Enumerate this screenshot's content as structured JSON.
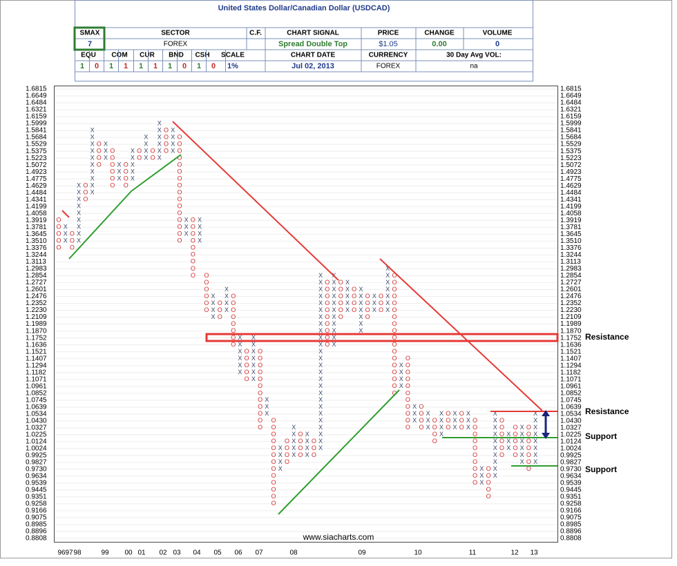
{
  "header": {
    "title": "United States Dollar/Canadian Dollar (USDCAD)",
    "smax_label": "SMAX",
    "smax": "7",
    "sector_label": "SECTOR",
    "sector": "FOREX",
    "cf_label": "C.F.",
    "signal_label": "CHART SIGNAL",
    "signal": "Spread Double Top",
    "price_label": "PRICE",
    "price": "$1.05",
    "change_label": "CHANGE",
    "change": "0.00",
    "volume_label": "VOLUME",
    "volume": "0",
    "asset_labels": [
      "EQU",
      "COM",
      "CUR",
      "BND",
      "CSH",
      "SCALE"
    ],
    "asset_values": [
      "1",
      "0",
      "1",
      "1",
      "1",
      "1",
      "1",
      "0",
      "1",
      "0",
      "1%"
    ],
    "date_label": "CHART DATE",
    "date": "Jul 02, 2013",
    "currency_label": "CURRENCY",
    "currency": "FOREX",
    "avg_vol_label": "30 Day Avg VOL:",
    "avg_vol": "na"
  },
  "chart_data": {
    "type": "point-and-figure",
    "log_scale": true,
    "grid": true,
    "ylim": [
      0.8808,
      1.6815
    ],
    "yticks": [
      1.6815,
      1.6649,
      1.6484,
      1.6321,
      1.6159,
      1.5999,
      1.5841,
      1.5684,
      1.5529,
      1.5375,
      1.5223,
      1.5072,
      1.4923,
      1.4775,
      1.4629,
      1.4484,
      1.4341,
      1.4199,
      1.4058,
      1.3919,
      1.3781,
      1.3645,
      {
        "value": 1.351,
        "label": "1.3510"
      },
      1.3376,
      1.3244,
      1.3113,
      1.2983,
      1.2854,
      1.2727,
      1.2601,
      1.2476,
      1.2352,
      {
        "value": 1.223,
        "label": "1.2230"
      },
      1.2109,
      1.1989,
      {
        "value": 1.187,
        "label": "1.1870"
      },
      1.1752,
      1.1636,
      1.1521,
      1.1407,
      1.1294,
      1.1182,
      1.1071,
      1.0961,
      1.0852,
      1.0745,
      1.0639,
      1.0534,
      {
        "value": 1.043,
        "label": "1.0430"
      },
      1.0327,
      1.0225,
      1.0124,
      1.0024,
      0.9925,
      0.9827,
      {
        "value": 0.973,
        "label": "0.9730"
      },
      0.9634,
      0.9539,
      0.9445,
      0.9351,
      0.9258,
      0.9166,
      0.9075,
      0.8985,
      0.8896,
      0.8808
    ],
    "categories": [
      "96",
      "97",
      "98",
      "99",
      "00",
      "01",
      "02",
      "03",
      "04",
      "05",
      "06",
      "07",
      "08",
      "09",
      "10",
      "11",
      "12",
      "13"
    ],
    "columns": [
      {
        "kind": "O",
        "low": 1.3376,
        "high": 1.3919
      },
      {
        "kind": "X",
        "low": 1.351,
        "high": 1.3781
      },
      {
        "kind": "O",
        "low": 1.3376,
        "high": 1.3645
      },
      {
        "kind": "X",
        "low": 1.351,
        "high": 1.4629
      },
      {
        "kind": "O",
        "low": 1.4341,
        "high": 1.4629
      },
      {
        "kind": "X",
        "low": 1.4484,
        "high": 1.5841
      },
      {
        "kind": "O",
        "low": 1.5072,
        "high": 1.5529
      },
      {
        "kind": "X",
        "low": 1.5223,
        "high": 1.5529
      },
      {
        "kind": "O",
        "low": 1.4629,
        "high": 1.5375
      },
      {
        "kind": "X",
        "low": 1.4775,
        "high": 1.5072
      },
      {
        "kind": "O",
        "low": 1.4629,
        "high": 1.5072
      },
      {
        "kind": "X",
        "low": 1.4775,
        "high": 1.5375
      },
      {
        "kind": "O",
        "low": 1.5223,
        "high": 1.5375
      },
      {
        "kind": "X",
        "low": 1.5223,
        "high": 1.5684
      },
      {
        "kind": "O",
        "low": 1.5223,
        "high": 1.5375
      },
      {
        "kind": "X",
        "low": 1.5223,
        "high": 1.5999
      },
      {
        "kind": "O",
        "low": 1.5375,
        "high": 1.5841
      },
      {
        "kind": "X",
        "low": 1.5375,
        "high": 1.5841
      },
      {
        "kind": "O",
        "low": 1.351,
        "high": 1.5684
      },
      {
        "kind": "X",
        "low": 1.3645,
        "high": 1.3919
      },
      {
        "kind": "O",
        "low": 1.2854,
        "high": 1.3919
      },
      {
        "kind": "X",
        "low": 1.351,
        "high": 1.3919
      },
      {
        "kind": "O",
        "low": 1.223,
        "high": 1.2854
      },
      {
        "kind": "X",
        "low": 1.2109,
        "high": 1.2476
      },
      {
        "kind": "O",
        "low": 1.2109,
        "high": 1.2352
      },
      {
        "kind": "X",
        "low": 1.223,
        "high": 1.2601
      },
      {
        "kind": "O",
        "low": 1.1636,
        "high": 1.2476
      },
      {
        "kind": "X",
        "low": 1.1182,
        "high": 1.1752
      },
      {
        "kind": "O",
        "low": 1.1071,
        "high": 1.1521
      },
      {
        "kind": "X",
        "low": 1.1071,
        "high": 1.1752
      },
      {
        "kind": "O",
        "low": 1.0327,
        "high": 1.1521
      },
      {
        "kind": "X",
        "low": 1.0534,
        "high": 1.0745
      },
      {
        "kind": "O",
        "low": 0.9258,
        "high": 1.043
      },
      {
        "kind": "X",
        "low": 0.973,
        "high": 1.0024
      },
      {
        "kind": "O",
        "low": 0.9827,
        "high": 1.0124
      },
      {
        "kind": "X",
        "low": 0.9925,
        "high": 1.0327
      },
      {
        "kind": "O",
        "low": 0.9925,
        "high": 1.0225
      },
      {
        "kind": "X",
        "low": 0.9925,
        "high": 1.0225
      },
      {
        "kind": "O",
        "low": 0.9925,
        "high": 1.0124
      },
      {
        "kind": "X",
        "low": 1.0024,
        "high": 1.2854
      },
      {
        "kind": "O",
        "low": 1.1636,
        "high": 1.2727
      },
      {
        "kind": "X",
        "low": 1.1636,
        "high": 1.2854
      },
      {
        "kind": "O",
        "low": 1.2109,
        "high": 1.2727
      },
      {
        "kind": "X",
        "low": 1.223,
        "high": 1.2727
      },
      {
        "kind": "O",
        "low": 1.223,
        "high": 1.2601
      },
      {
        "kind": "X",
        "low": 1.187,
        "high": 1.2601
      },
      {
        "kind": "O",
        "low": 1.2109,
        "high": 1.2476
      },
      {
        "kind": "X",
        "low": 1.223,
        "high": 1.2476
      },
      {
        "kind": "O",
        "low": 1.223,
        "high": 1.2476
      },
      {
        "kind": "X",
        "low": 1.223,
        "high": 1.2983
      },
      {
        "kind": "O",
        "low": 1.0852,
        "high": 1.2854
      },
      {
        "kind": "X",
        "low": 1.0961,
        "high": 1.1294
      },
      {
        "kind": "O",
        "low": 1.0327,
        "high": 1.1407
      },
      {
        "kind": "X",
        "low": 1.043,
        "high": 1.0639
      },
      {
        "kind": "O",
        "low": 1.0327,
        "high": 1.0639
      },
      {
        "kind": "X",
        "low": 1.0327,
        "high": 1.0534
      },
      {
        "kind": "O",
        "low": 1.0124,
        "high": 1.043
      },
      {
        "kind": "X",
        "low": 1.0225,
        "high": 1.0534
      },
      {
        "kind": "O",
        "low": 1.0327,
        "high": 1.0534
      },
      {
        "kind": "X",
        "low": 1.0327,
        "high": 1.0534
      },
      {
        "kind": "O",
        "low": 1.0327,
        "high": 1.0534
      },
      {
        "kind": "X",
        "low": 1.0327,
        "high": 1.0534
      },
      {
        "kind": "O",
        "low": 0.9539,
        "high": 1.043
      },
      {
        "kind": "X",
        "low": 0.9539,
        "high": 0.973
      },
      {
        "kind": "O",
        "low": 0.9351,
        "high": 0.973
      },
      {
        "kind": "X",
        "low": 0.9634,
        "high": 1.0534
      },
      {
        "kind": "O",
        "low": 0.9925,
        "high": 1.043
      },
      {
        "kind": "X",
        "low": 1.0024,
        "high": 1.0225
      },
      {
        "kind": "O",
        "low": 0.9925,
        "high": 1.0327
      },
      {
        "kind": "X",
        "low": 0.9827,
        "high": 1.0327
      },
      {
        "kind": "O",
        "low": 0.973,
        "high": 1.0327
      },
      {
        "kind": "X",
        "low": 0.9827,
        "high": 1.0534
      }
    ],
    "annotations": [
      "Resistance",
      "Resistance",
      "Support",
      "Support"
    ],
    "source": "www.siacharts.com"
  }
}
